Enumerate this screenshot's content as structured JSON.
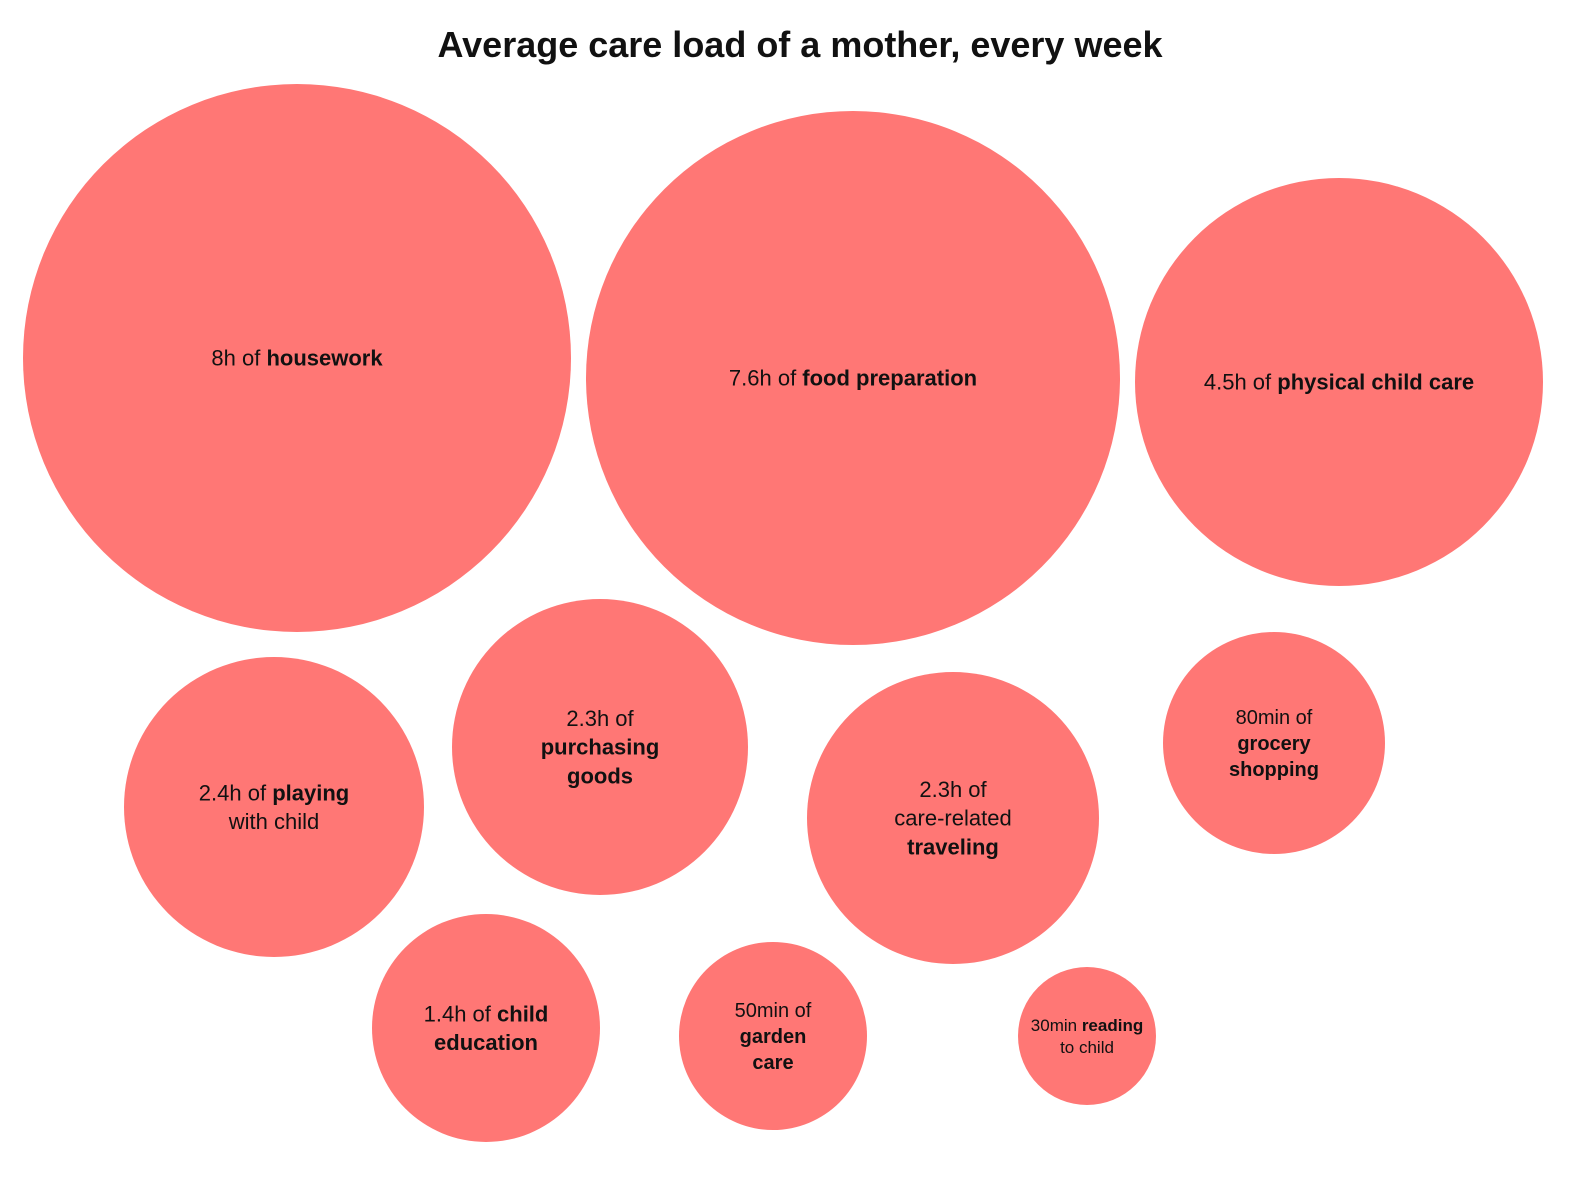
{
  "chart_data": {
    "type": "bubble",
    "title": "Average care load of a mother, every week",
    "color": "#ff7775",
    "unit_note": "",
    "bubbles": [
      {
        "activity": "housework",
        "value_hours": 8.0,
        "label_lines": [
          [
            {
              "t": "8h of ",
              "b": false
            },
            {
              "t": "housework",
              "b": true
            }
          ]
        ]
      },
      {
        "activity": "food preparation",
        "value_hours": 7.6,
        "label_lines": [
          [
            {
              "t": "7.6h of ",
              "b": false
            },
            {
              "t": "food preparation",
              "b": true
            }
          ]
        ]
      },
      {
        "activity": "physical child care",
        "value_hours": 4.5,
        "label_lines": [
          [
            {
              "t": "4.5h of ",
              "b": false
            },
            {
              "t": "physical child care",
              "b": true
            }
          ]
        ]
      },
      {
        "activity": "playing with child",
        "value_hours": 2.4,
        "label_lines": [
          [
            {
              "t": "2.4h of ",
              "b": false
            },
            {
              "t": "playing",
              "b": true
            }
          ],
          [
            {
              "t": "with child",
              "b": false
            }
          ]
        ]
      },
      {
        "activity": "purchasing goods",
        "value_hours": 2.3,
        "label_lines": [
          [
            {
              "t": "2.3h of",
              "b": false
            }
          ],
          [
            {
              "t": "purchasing",
              "b": true
            }
          ],
          [
            {
              "t": "goods",
              "b": true
            }
          ]
        ]
      },
      {
        "activity": "care-related traveling",
        "value_hours": 2.3,
        "label_lines": [
          [
            {
              "t": "2.3h of",
              "b": false
            }
          ],
          [
            {
              "t": "care-related",
              "b": false
            }
          ],
          [
            {
              "t": "traveling",
              "b": true
            }
          ]
        ]
      },
      {
        "activity": "grocery shopping",
        "value_hours": 1.33,
        "label_lines": [
          [
            {
              "t": "80min of",
              "b": false
            }
          ],
          [
            {
              "t": "grocery",
              "b": true
            }
          ],
          [
            {
              "t": "shopping",
              "b": true
            }
          ]
        ]
      },
      {
        "activity": "child education",
        "value_hours": 1.4,
        "label_lines": [
          [
            {
              "t": "1.4h of ",
              "b": false
            },
            {
              "t": "child",
              "b": true
            }
          ],
          [
            {
              "t": "education",
              "b": true
            }
          ]
        ]
      },
      {
        "activity": "garden care",
        "value_hours": 0.83,
        "label_lines": [
          [
            {
              "t": "50min of",
              "b": false
            }
          ],
          [
            {
              "t": "garden",
              "b": true
            }
          ],
          [
            {
              "t": "care",
              "b": true
            }
          ]
        ]
      },
      {
        "activity": "reading to child",
        "value_hours": 0.5,
        "label_lines": [
          [
            {
              "t": "30min ",
              "b": false
            },
            {
              "t": "reading",
              "b": true
            }
          ],
          [
            {
              "t": "to child",
              "b": false
            }
          ]
        ]
      }
    ]
  }
}
